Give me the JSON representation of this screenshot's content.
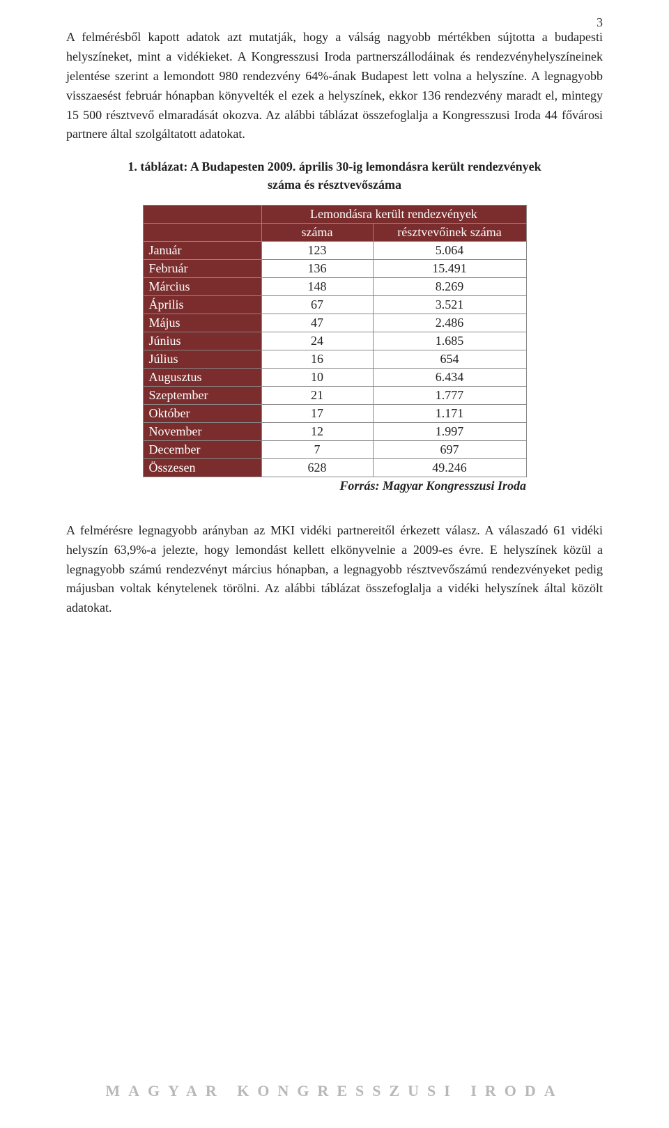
{
  "page_number": "3",
  "paragraphs": {
    "p1": "A felmérésből kapott adatok azt mutatják, hogy a válság nagyobb mértékben sújtotta a budapesti helyszíneket, mint a vidékieket. A Kongresszusi Iroda partnerszállodáinak és rendezvényhelyszíneinek jelentése szerint a lemondott 980 rendezvény 64%-ának Budapest lett volna a helyszíne. A legnagyobb visszaesést február hónapban könyvelték el ezek a helyszínek, ekkor 136 rendezvény maradt el, mintegy 15 500 résztvevő elmaradását okozva. Az alábbi táblázat összefoglalja a Kongresszusi Iroda 44 fővárosi partnere által szolgáltatott adatokat.",
    "p2": "A felmérésre legnagyobb arányban az MKI vidéki partnereitől érkezett válasz. A válaszadó 61 vidéki helyszín 63,9%-a jelezte, hogy lemondást kellett elkönyvelnie a 2009-es évre. E helyszínek közül a legnagyobb számú rendezvényt március hónapban, a legnagyobb résztvevőszámú rendezvényeket pedig májusban voltak kénytelenek törölni. Az alábbi táblázat összefoglalja a vidéki helyszínek által közölt adatokat."
  },
  "table": {
    "caption_line1": "1. táblázat: A Budapesten 2009. április 30-ig lemondásra került rendezvények",
    "caption_line2": "száma és résztvevőszáma",
    "header_top": "Lemondásra került rendezvények",
    "header_count": "száma",
    "header_participants": "résztvevőinek száma",
    "header_bg": "#7b2d2d",
    "header_fg": "#ffffff",
    "rows": [
      {
        "label": "Január",
        "count": "123",
        "participants": "5.064"
      },
      {
        "label": "Február",
        "count": "136",
        "participants": "15.491"
      },
      {
        "label": "Március",
        "count": "148",
        "participants": "8.269"
      },
      {
        "label": "Április",
        "count": "67",
        "participants": "3.521"
      },
      {
        "label": "Május",
        "count": "47",
        "participants": "2.486"
      },
      {
        "label": "Június",
        "count": "24",
        "participants": "1.685"
      },
      {
        "label": "Július",
        "count": "16",
        "participants": "654"
      },
      {
        "label": "Augusztus",
        "count": "10",
        "participants": "6.434"
      },
      {
        "label": "Szeptember",
        "count": "21",
        "participants": "1.777"
      },
      {
        "label": "Október",
        "count": "17",
        "participants": "1.171"
      },
      {
        "label": "November",
        "count": "12",
        "participants": "1.997"
      },
      {
        "label": "December",
        "count": "7",
        "participants": "697"
      },
      {
        "label": "Összesen",
        "count": "628",
        "participants": "49.246"
      }
    ],
    "source": "Forrás: Magyar Kongresszusi Iroda"
  },
  "footer": "MAGYAR KONGRESSZUSI IRODA"
}
